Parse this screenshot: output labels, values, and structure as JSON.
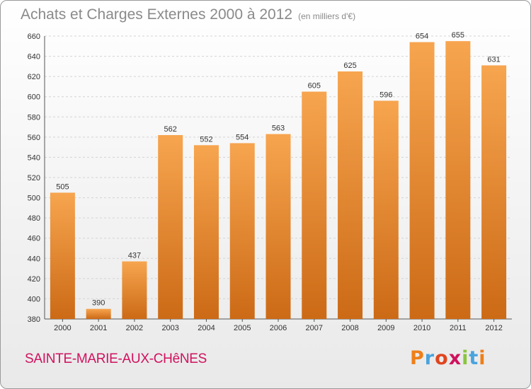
{
  "header": {
    "title": "Achats et Charges Externes 2000 à 2012",
    "subtitle": "(en milliers d'€)"
  },
  "footer": {
    "commune": "SAINTE-MARIE-AUX-CHêNES",
    "logo_text": "Proxiti"
  },
  "colors": {
    "bar_light": "#f7a54f",
    "bar_dark": "#cc6a16",
    "commune_text": "#d0115e",
    "logo_letters": [
      "#ee7f1a",
      "#4aa3dd",
      "#e0451f",
      "#d0115e",
      "#8bc540",
      "#4aa3dd",
      "#ee7f1a"
    ]
  },
  "chart_data": {
    "type": "bar",
    "title": "Achats et Charges Externes 2000 à 2012",
    "subtitle": "(en milliers d'€)",
    "categories": [
      "2000",
      "2001",
      "2002",
      "2003",
      "2004",
      "2005",
      "2006",
      "2007",
      "2008",
      "2009",
      "2010",
      "2011",
      "2012"
    ],
    "values": [
      505,
      390,
      437,
      562,
      552,
      554,
      563,
      605,
      625,
      596,
      654,
      655,
      631
    ],
    "ylim": [
      380,
      660
    ],
    "yticks": [
      380,
      400,
      420,
      440,
      460,
      480,
      500,
      520,
      540,
      560,
      580,
      600,
      620,
      640,
      660
    ],
    "grid": true,
    "data_labels": true
  }
}
